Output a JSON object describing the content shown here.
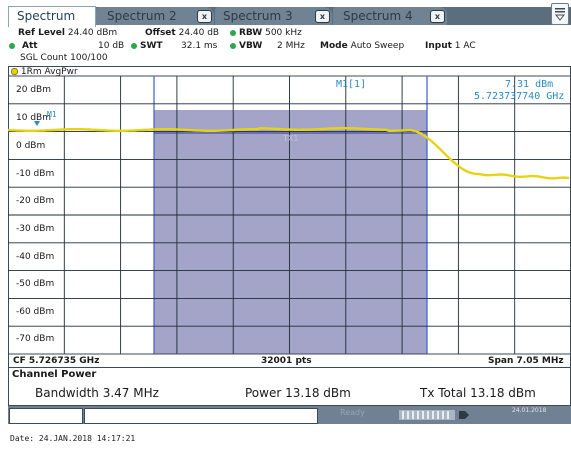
{
  "tabs": [
    {
      "label": "Spectrum",
      "active": true
    },
    {
      "label": "Spectrum 2",
      "active": false
    },
    {
      "label": "Spectrum 3",
      "active": false
    },
    {
      "label": "Spectrum 4",
      "active": false
    }
  ],
  "close_glyph": "x",
  "settings": {
    "ref_level_label": "Ref Level",
    "ref_level_value": "24.40 dBm",
    "offset_label": "Offset",
    "offset_value": "24.40 dB",
    "rbw_label": "RBW",
    "rbw_value": "500 kHz",
    "att_label": "Att",
    "att_value": "10 dB",
    "swt_label": "SWT",
    "swt_value": "32.1 ms",
    "vbw_label": "VBW",
    "vbw_value": "2 MHz",
    "mode_label": "Mode",
    "mode_value": "Auto Sweep",
    "input_label": "Input",
    "input_value": "1 AC",
    "sgl_count": "SGL Count 100/100"
  },
  "trace_label": "1Rm AvgPwr",
  "marker": {
    "name": "M1[1]",
    "level": "7.31 dBm",
    "freq": "5.723737740 GHz",
    "flag": "M1",
    "channel_label": "TX1"
  },
  "y_axis": {
    "labels": [
      "20 dBm",
      "10 dBm",
      "0 dBm",
      "-10 dBm",
      "-20 dBm",
      "-30 dBm",
      "-40 dBm",
      "-50 dBm",
      "-60 dBm",
      "-70 dBm"
    ]
  },
  "footer": {
    "cf": "CF 5.726735 GHz",
    "pts": "32001 pts",
    "span": "Span 7.05 MHz"
  },
  "channel_power": {
    "title": "Channel Power",
    "bandwidth_label": "Bandwidth",
    "bandwidth_value": "3.47 MHz",
    "power_label": "Power",
    "power_value": "13.18 dBm",
    "txtotal_label": "Tx Total",
    "txtotal_value": "13.18 dBm"
  },
  "status": {
    "ready": "Ready",
    "date_small": "24.01.2018"
  },
  "date_line": "Date: 24.JAN.2018  14:17:21",
  "colors": {
    "trace": "#e6d414",
    "channel_fill": "#a4a4c8",
    "marker": "#2a8cc4",
    "grid": "#1e2c36",
    "status_bar": "#6f8193"
  },
  "icons": {
    "menu": "hamburger-icon",
    "status_dot": "green-dot-icon"
  }
}
